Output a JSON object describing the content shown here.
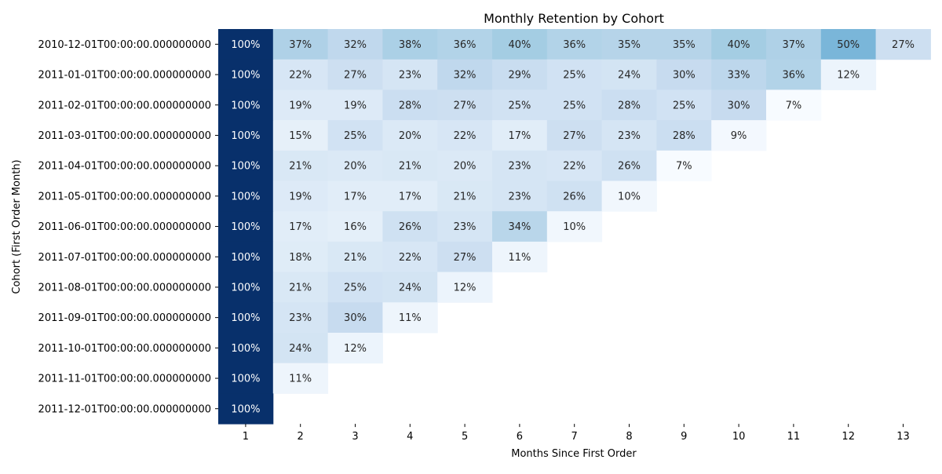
{
  "chart_data": {
    "type": "heatmap",
    "title": "Monthly Retention by Cohort",
    "xlabel": "Months Since First Order",
    "ylabel": "Cohort (First Order Month)",
    "x": [
      "1",
      "2",
      "3",
      "4",
      "5",
      "6",
      "7",
      "8",
      "9",
      "10",
      "11",
      "12",
      "13"
    ],
    "y": [
      "2010-12-01T00:00:00.000000000",
      "2011-01-01T00:00:00.000000000",
      "2011-02-01T00:00:00.000000000",
      "2011-03-01T00:00:00.000000000",
      "2011-04-01T00:00:00.000000000",
      "2011-05-01T00:00:00.000000000",
      "2011-06-01T00:00:00.000000000",
      "2011-07-01T00:00:00.000000000",
      "2011-08-01T00:00:00.000000000",
      "2011-09-01T00:00:00.000000000",
      "2011-10-01T00:00:00.000000000",
      "2011-11-01T00:00:00.000000000",
      "2011-12-01T00:00:00.000000000"
    ],
    "values": [
      [
        100,
        37,
        32,
        38,
        36,
        40,
        36,
        35,
        35,
        40,
        37,
        50,
        27
      ],
      [
        100,
        22,
        27,
        23,
        32,
        29,
        25,
        24,
        30,
        33,
        36,
        12
      ],
      [
        100,
        19,
        19,
        28,
        27,
        25,
        25,
        28,
        25,
        30,
        7
      ],
      [
        100,
        15,
        25,
        20,
        22,
        17,
        27,
        23,
        28,
        9
      ],
      [
        100,
        21,
        20,
        21,
        20,
        23,
        22,
        26,
        7
      ],
      [
        100,
        19,
        17,
        17,
        21,
        23,
        26,
        10
      ],
      [
        100,
        17,
        16,
        26,
        23,
        34,
        10
      ],
      [
        100,
        18,
        21,
        22,
        27,
        11
      ],
      [
        100,
        21,
        25,
        24,
        12
      ],
      [
        100,
        23,
        30,
        11
      ],
      [
        100,
        24,
        12
      ],
      [
        100,
        11
      ],
      [
        100
      ]
    ],
    "value_format": "{v}%",
    "colormap": "Blues",
    "colors": {
      "min": "#f7fbff",
      "max": "#08306b",
      "text_dark": "#262626",
      "text_light": "#ffffff"
    }
  }
}
